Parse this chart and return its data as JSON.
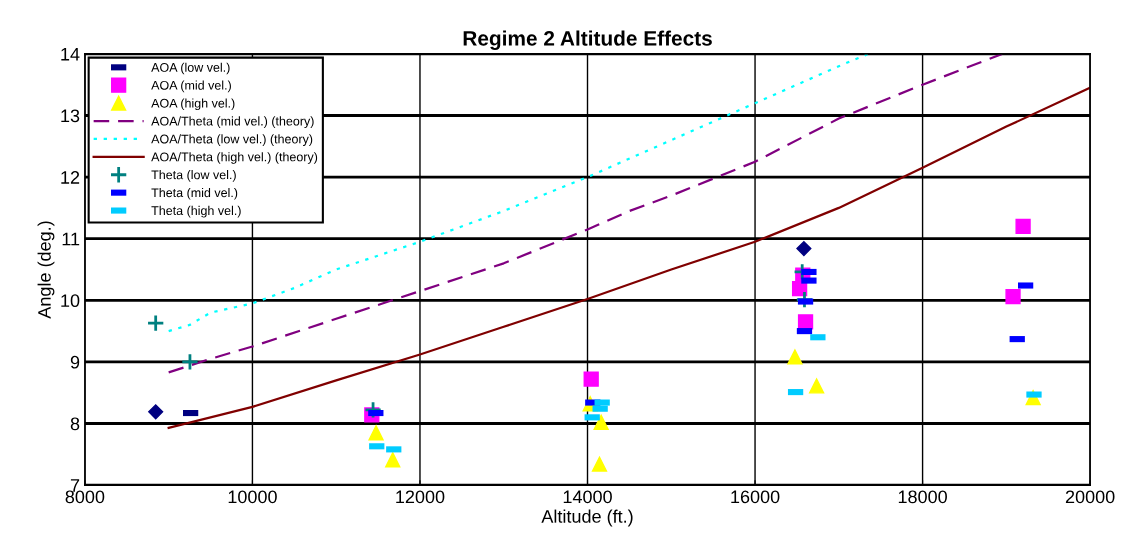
{
  "chart_data": {
    "type": "scatter",
    "title": "Regime 2 Altitude Effects",
    "xlabel": "Altitude (ft.)",
    "ylabel": "Angle (deg.)",
    "xlim": [
      8000,
      20000
    ],
    "xticks": [
      8000,
      10000,
      12000,
      14000,
      16000,
      18000,
      20000
    ],
    "ylim": [
      7,
      14
    ],
    "yticks": [
      7,
      8,
      9,
      10,
      11,
      12,
      13,
      14
    ],
    "grid": true,
    "legend": "top left",
    "series": [
      {
        "name": "AOA (low vel.)",
        "color": "#000080",
        "x": [
          9262
        ],
        "values": [
          8.17
        ]
      },
      {
        "name": "AOA (mid vel.)",
        "marker": "square",
        "color": "#ff00ff",
        "x": [
          11425,
          14044,
          16570,
          16532,
          16603,
          19200,
          19080
        ],
        "values": [
          8.14,
          8.72,
          10.41,
          10.19,
          9.65,
          11.2,
          10.06
        ]
      },
      {
        "name": "AOA (high vel.)",
        "marker": "triangle",
        "color": "#ffff00",
        "x": [
          11476,
          11675,
          14032,
          14163,
          14143,
          16476,
          16735,
          19320
        ],
        "values": [
          7.85,
          7.41,
          8.32,
          8.02,
          7.34,
          9.08,
          8.61,
          8.42
        ]
      },
      {
        "name": "AOA/Theta (mid vel.) (theory)",
        "type": "line",
        "line_style": "dashed",
        "color": "#800080",
        "x": [
          9000,
          9500,
          10000,
          11000,
          12000,
          13000,
          14000,
          14500,
          15000,
          16000,
          17000,
          18000,
          18950
        ],
        "values": [
          8.83,
          9.05,
          9.25,
          9.7,
          10.15,
          10.6,
          11.15,
          11.45,
          11.7,
          12.25,
          12.95,
          13.5,
          14.0
        ]
      },
      {
        "name": "AOA/Theta (low vel.) (theory)",
        "type": "line",
        "line_style": "dotted",
        "color": "#00ffff",
        "x": [
          9000,
          9250,
          9500,
          10000,
          10500,
          11000,
          12000,
          13000,
          14000,
          15000,
          16000,
          17000,
          17350
        ],
        "values": [
          9.5,
          9.6,
          9.8,
          9.95,
          10.2,
          10.5,
          10.95,
          11.45,
          12.0,
          12.6,
          13.2,
          13.8,
          14.0
        ]
      },
      {
        "name": "AOA/Theta (high vel.) (theory)",
        "type": "line",
        "line_style": "solid",
        "color": "#800000",
        "x": [
          9000,
          10000,
          11000,
          12000,
          13000,
          14000,
          15000,
          16000,
          17000,
          18000,
          19000,
          20000
        ],
        "values": [
          7.93,
          8.27,
          8.7,
          9.12,
          9.57,
          10.02,
          10.5,
          10.95,
          11.5,
          12.15,
          12.82,
          13.45
        ]
      },
      {
        "name": "Theta (low vel.)",
        "marker": "cross",
        "color": "#008080",
        "x": [
          8845,
          9254,
          11440,
          16563,
          16590
        ],
        "values": [
          9.63,
          9.0,
          8.22,
          10.46,
          10.01
        ]
      },
      {
        "name": "Theta (mid vel.)",
        "color": "#0000ff",
        "x": [
          11473,
          14063,
          16643,
          16643,
          16603,
          16590,
          19230,
          19130
        ],
        "values": [
          8.17,
          8.34,
          10.46,
          10.32,
          9.98,
          9.5,
          10.24,
          9.37
        ]
      },
      {
        "name": "Theta (high vel.)",
        "color": "#00ccff",
        "x": [
          11484,
          11687,
          14175,
          14151,
          14056,
          16750,
          16484,
          19330
        ],
        "values": [
          7.63,
          7.58,
          8.34,
          8.24,
          8.1,
          9.4,
          8.51,
          8.47
        ]
      },
      {
        "marker": "diamond",
        "color": "#000080",
        "x": [
          8845,
          16583
        ],
        "values": [
          8.19,
          10.84
        ]
      }
    ]
  }
}
